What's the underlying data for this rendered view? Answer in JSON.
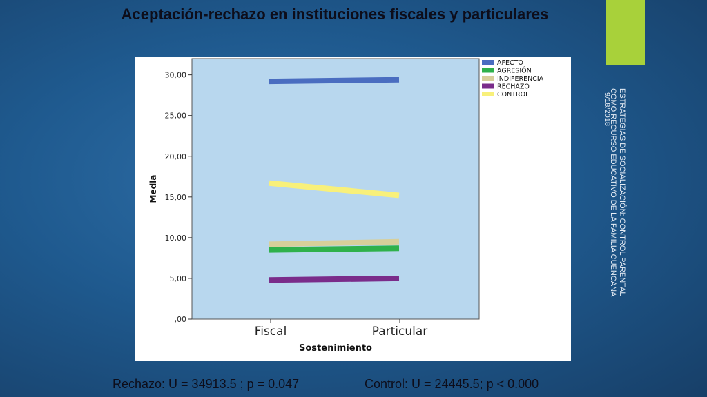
{
  "slide": {
    "title": "Aceptación-rechazo en instituciones fiscales y particulares",
    "side_caption_line1": "ESTRATEGIAS DE SOCIALIZACIÓN: CONTROL PARENTAL",
    "side_caption_line2": "COMO RECURSO EDUCATIVO DE LA FAMILIA CUENCANA",
    "date": "9/18/2018",
    "footer_left": "Rechazo: U = 34913.5 ; p = 0.047",
    "footer_right": "Control:  U = 24445.5; p < 0.000",
    "accent_color": "#a8d13a"
  },
  "chart_data": {
    "type": "line",
    "xlabel": "Sostenimiento",
    "ylabel": "Media",
    "categories": [
      "Fiscal",
      "Particular"
    ],
    "ylim": [
      0,
      32
    ],
    "yticks": [
      0,
      5,
      10,
      15,
      20,
      25,
      30
    ],
    "ytick_labels": [
      ",00",
      "5,00",
      "10,00",
      "15,00",
      "20,00",
      "25,00",
      "30,00"
    ],
    "plot_background": "#b8d7ee",
    "legend_position": "top-right",
    "series": [
      {
        "name": "AFECTO",
        "values": [
          29.2,
          29.4
        ],
        "color": "#4a6dc0"
      },
      {
        "name": "AGRESIÓN",
        "values": [
          8.5,
          8.7
        ],
        "color": "#2fb14b"
      },
      {
        "name": "INDIFERENCIA",
        "values": [
          9.2,
          9.5
        ],
        "color": "#d7cf9a"
      },
      {
        "name": "RECHAZO",
        "values": [
          4.8,
          5.0
        ],
        "color": "#7a2c8a"
      },
      {
        "name": "CONTROL",
        "values": [
          16.7,
          15.2
        ],
        "color": "#f8f07a"
      }
    ]
  }
}
